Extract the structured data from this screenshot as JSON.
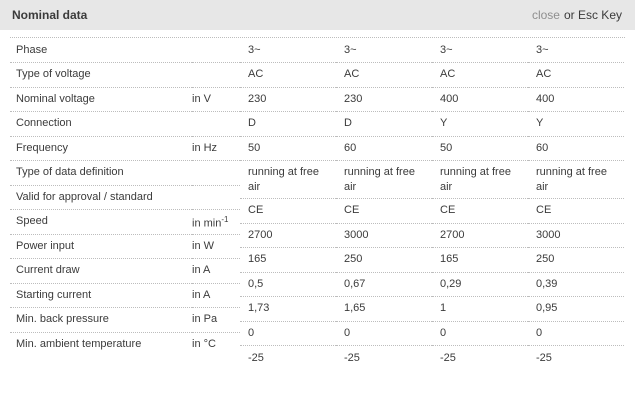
{
  "header": {
    "title": "Nominal data",
    "close_label": "close",
    "close_hint": "or Esc Key"
  },
  "colors": {
    "header_bg": "#e7e7e7",
    "text": "#3b3b3b",
    "close_link": "#8f8f8f",
    "border_dotted": "#bdbdbd"
  },
  "table": {
    "rows": [
      {
        "label": "Phase",
        "unit": ""
      },
      {
        "label": "Type of voltage",
        "unit": ""
      },
      {
        "label": "Nominal voltage",
        "unit": "in V"
      },
      {
        "label": "Connection",
        "unit": ""
      },
      {
        "label": "Frequency",
        "unit": "in Hz"
      },
      {
        "label": "Type of data definition",
        "unit": ""
      },
      {
        "label": "Valid for approval / standard",
        "unit": ""
      },
      {
        "label": "Speed",
        "unit": "in min",
        "unit_sup": "-1"
      },
      {
        "label": "Power input",
        "unit": "in W"
      },
      {
        "label": "Current draw",
        "unit": "in A"
      },
      {
        "label": "Starting current",
        "unit": "in A"
      },
      {
        "label": "Min. back pressure",
        "unit": "in Pa"
      },
      {
        "label": "Min. ambient temperature",
        "unit": "in °C"
      }
    ],
    "values": [
      [
        "3~",
        "3~",
        "3~",
        "3~"
      ],
      [
        "AC",
        "AC",
        "AC",
        "AC"
      ],
      [
        "230",
        "230",
        "400",
        "400"
      ],
      [
        "D",
        "D",
        "Y",
        "Y"
      ],
      [
        "50",
        "60",
        "50",
        "60"
      ],
      [
        "running at free air",
        "running at free air",
        "running at free air",
        "running at free air"
      ],
      [
        "CE",
        "CE",
        "CE",
        "CE"
      ],
      [
        "2700",
        "3000",
        "2700",
        "3000"
      ],
      [
        "165",
        "250",
        "165",
        "250"
      ],
      [
        "0,5",
        "0,67",
        "0,29",
        "0,39"
      ],
      [
        "1,73",
        "1,65",
        "1",
        "0,95"
      ],
      [
        "0",
        "0",
        "0",
        "0"
      ],
      [
        "-25",
        "-25",
        "-25",
        "-25"
      ]
    ]
  }
}
